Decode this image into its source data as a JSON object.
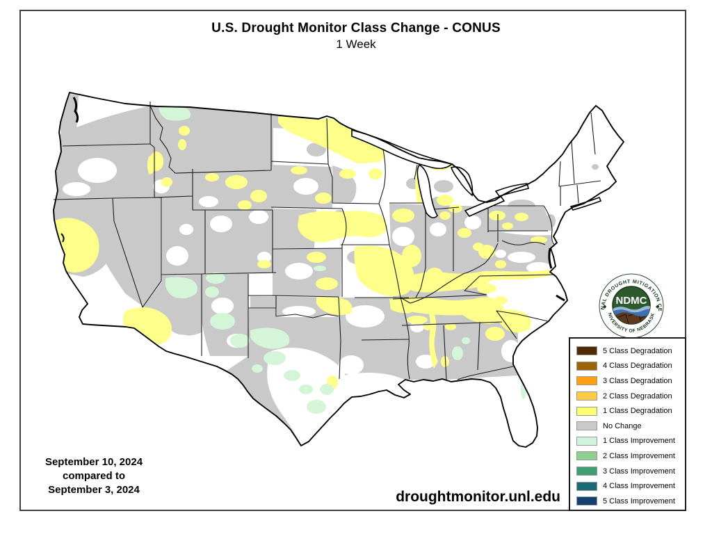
{
  "title": "U.S. Drought Monitor Class Change - CONUS",
  "subtitle": "1 Week",
  "date_block": {
    "line1": "September 10, 2024",
    "line2": "compared to",
    "line3": "September 3, 2024"
  },
  "website": "droughtmonitor.unl.edu",
  "logo": {
    "acronym": "NDMC",
    "arc_top": "NATIONAL DROUGHT MITIGATION CENTER",
    "arc_bottom": "UNIVERSITY OF NEBRASKA"
  },
  "legend": {
    "items": [
      {
        "label": "5 Class Degradation",
        "color": "#4e2a05"
      },
      {
        "label": "4 Class Degradation",
        "color": "#9c6409"
      },
      {
        "label": "3 Class Degradation",
        "color": "#ffa010"
      },
      {
        "label": "2 Class Degradation",
        "color": "#fcca45"
      },
      {
        "label": "1 Class Degradation",
        "color": "#ffff73"
      },
      {
        "label": "No Change",
        "color": "#c9c9c9"
      },
      {
        "label": "1 Class Improvement",
        "color": "#d2f3dc"
      },
      {
        "label": "2 Class Improvement",
        "color": "#8fcf8f"
      },
      {
        "label": "3 Class Improvement",
        "color": "#3f9e71"
      },
      {
        "label": "4 Class Improvement",
        "color": "#1a6b75"
      },
      {
        "label": "5 Class Improvement",
        "color": "#15406f"
      }
    ]
  },
  "map": {
    "palette": {
      "no_change": "#c9c9c9",
      "degradation_1": "#fdff8a",
      "improvement_1": "#d5f5d8",
      "land": "#ffffff",
      "border": "#000000"
    }
  }
}
